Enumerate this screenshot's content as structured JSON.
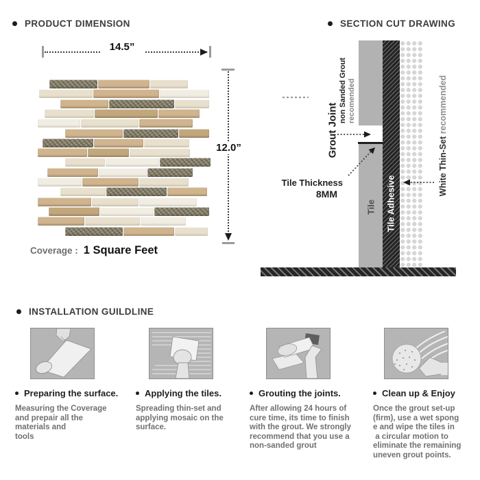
{
  "product": {
    "heading": "PRODUCT DIMENSION",
    "width_label": "14.5”",
    "height_label": "12.0”",
    "coverage_label": "Coverage :",
    "coverage_value": "1 Square Feet",
    "mosaic": {
      "palette": {
        "beige": "#d0b48e",
        "tan": "#c2a77d",
        "cream": "#e8e0cd",
        "white": "#f1ede2",
        "gray": "#8b8470"
      },
      "row_pitch": 14.3,
      "rows": [
        {
          "l": 17,
          "segs": [
            [
              "gray",
              70
            ],
            [
              "beige",
              75
            ],
            [
              "cream",
              55
            ]
          ]
        },
        {
          "l": 2,
          "segs": [
            [
              "cream",
              78
            ],
            [
              "beige",
              96
            ],
            [
              "white",
              72
            ]
          ]
        },
        {
          "l": 33,
          "segs": [
            [
              "beige",
              70
            ],
            [
              "gray",
              95
            ],
            [
              "cream",
              50
            ]
          ]
        },
        {
          "l": 10,
          "segs": [
            [
              "cream",
              72
            ],
            [
              "tan",
              92
            ],
            [
              "beige",
              60
            ]
          ]
        },
        {
          "l": 0,
          "segs": [
            [
              "white",
              62
            ],
            [
              "cream",
              84
            ],
            [
              "beige",
              78
            ]
          ]
        },
        {
          "l": 40,
          "segs": [
            [
              "beige",
              84
            ],
            [
              "gray",
              80
            ],
            [
              "tan",
              44
            ]
          ]
        },
        {
          "l": 7,
          "segs": [
            [
              "gray",
              74
            ],
            [
              "beige",
              72
            ],
            [
              "cream",
              66
            ]
          ]
        },
        {
          "l": 0,
          "segs": [
            [
              "beige",
              72
            ],
            [
              "tan",
              60
            ],
            [
              "cream",
              88
            ]
          ]
        },
        {
          "l": 40,
          "segs": [
            [
              "cream",
              58
            ],
            [
              "white",
              78
            ],
            [
              "gray",
              74
            ]
          ]
        },
        {
          "l": 14,
          "segs": [
            [
              "beige",
              74
            ],
            [
              "white",
              70
            ],
            [
              "gray",
              66
            ]
          ]
        },
        {
          "l": 0,
          "segs": [
            [
              "white",
              64
            ],
            [
              "beige",
              82
            ],
            [
              "cream",
              72
            ]
          ]
        },
        {
          "l": 33,
          "segs": [
            [
              "cream",
              66
            ],
            [
              "gray",
              88
            ],
            [
              "beige",
              58
            ]
          ]
        },
        {
          "l": 0,
          "segs": [
            [
              "beige",
              78
            ],
            [
              "cream",
              68
            ],
            [
              "white",
              84
            ]
          ]
        },
        {
          "l": 16,
          "segs": [
            [
              "tan",
              74
            ],
            [
              "white",
              78
            ],
            [
              "gray",
              80
            ]
          ]
        },
        {
          "l": 0,
          "segs": [
            [
              "beige",
              68
            ],
            [
              "cream",
              80
            ],
            [
              "white",
              66
            ]
          ]
        },
        {
          "l": 40,
          "segs": [
            [
              "gray",
              84
            ],
            [
              "beige",
              74
            ],
            [
              "cream",
              48
            ]
          ]
        }
      ]
    }
  },
  "section": {
    "heading": "SECTION CUT DRAWING",
    "grout_joint": "Grout Joint",
    "grout_note": "non Sanded Grout",
    "grout_note2": "recomended",
    "thickness_label": "Tile Thickness",
    "thickness_value": "8MM",
    "tile": "Tile",
    "adhesive": "Tile Adhesive",
    "thinset": "White Thin-Set",
    "thinset_note": " recommended"
  },
  "install": {
    "heading": "INSTALLATION GUILDLINE",
    "steps": [
      {
        "title": "Preparing the surface.",
        "desc": "Measuring the Coverage\nand prepair all the\nmaterials and\ntools"
      },
      {
        "title": "Applying the tiles.",
        "desc": "Spreading thin-set and\napplying mosaic on the\nsurface."
      },
      {
        "title": "Grouting the joints.",
        "desc": "After allowing 24 hours of\ncure time, its time to finish\nwith the grout. We strongly\nrecommend that you use a\nnon-sanded grout"
      },
      {
        "title": "Clean up & Enjoy",
        "desc": "Once the grout set-up\n(firm), use a wet spong\ne and wipe the tiles in\n a circular motion to\neliminate the remaining\nuneven grout points."
      }
    ]
  },
  "colors": {
    "tile_bar": "#b2b2b2",
    "ink": "#1f1f1f",
    "gray_text": "#707070"
  }
}
